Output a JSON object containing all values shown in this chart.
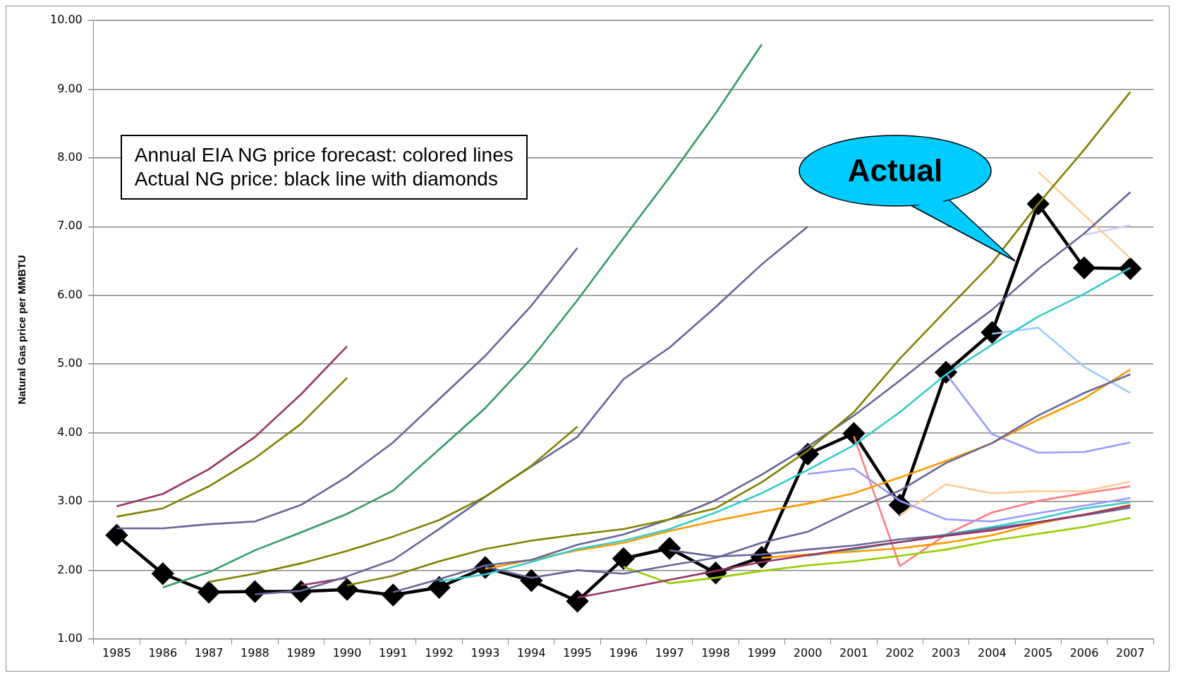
{
  "chart_data": {
    "type": "line",
    "ylabel": "Natural Gas price per MMBTU",
    "categories": [
      "1985",
      "1986",
      "1987",
      "1988",
      "1989",
      "1990",
      "1991",
      "1992",
      "1993",
      "1994",
      "1995",
      "1996",
      "1997",
      "1998",
      "1999",
      "2000",
      "2001",
      "2002",
      "2003",
      "2004",
      "2005",
      "2006",
      "2007"
    ],
    "ylim": [
      1,
      10
    ],
    "yticks": [
      {
        "value": 1,
        "label": "1.00"
      },
      {
        "value": 2,
        "label": "2.00"
      },
      {
        "value": 3,
        "label": "3.00"
      },
      {
        "value": 4,
        "label": "4.00"
      },
      {
        "value": 5,
        "label": "5.00"
      },
      {
        "value": 6,
        "label": "6.00"
      },
      {
        "value": 7,
        "label": "7.00"
      },
      {
        "value": 8,
        "label": "8.00"
      },
      {
        "value": 9,
        "label": "9.00"
      },
      {
        "value": 10,
        "label": "10.00"
      }
    ],
    "grid": "y",
    "legend": false,
    "marker": "none",
    "annotations": [
      "Annual EIA NG price forecast: colored lines",
      "Actual NG price: black line with diamonds",
      {
        "text": "Actual",
        "x": "2004",
        "y": 6.5
      }
    ],
    "series": [
      {
        "color": "#993366",
        "values": [
          2.93,
          3.11,
          3.47,
          3.94,
          4.56,
          5.26,
          null,
          null,
          null,
          null,
          null,
          null,
          null,
          null,
          null,
          null,
          null,
          null,
          null,
          null,
          null,
          null,
          null
        ]
      },
      {
        "color": "#808000",
        "values": [
          2.78,
          2.9,
          3.22,
          3.63,
          4.13,
          4.8,
          null,
          null,
          null,
          null,
          null,
          null,
          null,
          null,
          null,
          null,
          null,
          null,
          null,
          null,
          null,
          null,
          null
        ]
      },
      {
        "color": "#666699",
        "values": [
          2.61,
          2.61,
          2.67,
          2.71,
          2.95,
          3.36,
          3.86,
          4.49,
          5.12,
          5.85,
          6.69,
          null,
          null,
          null,
          null,
          null,
          null,
          null,
          null,
          null,
          null,
          null,
          null
        ]
      },
      {
        "color": "#339966",
        "values": [
          null,
          1.75,
          1.97,
          2.29,
          2.55,
          2.82,
          3.16,
          3.76,
          4.36,
          5.08,
          5.93,
          6.83,
          7.72,
          8.65,
          9.65,
          null,
          null,
          null,
          null,
          null,
          null,
          null,
          null
        ]
      },
      {
        "color": "#808000",
        "values": [
          null,
          null,
          1.83,
          1.95,
          2.1,
          2.28,
          2.49,
          2.73,
          3.07,
          3.52,
          4.09,
          null,
          null,
          null,
          null,
          null,
          null,
          null,
          null,
          null,
          null,
          null,
          null
        ]
      },
      {
        "color": "#666699",
        "values": [
          null,
          null,
          null,
          1.65,
          1.7,
          1.91,
          2.15,
          2.6,
          3.07,
          3.51,
          3.94,
          4.78,
          5.24,
          5.83,
          6.45,
          7.0,
          null,
          null,
          null,
          null,
          null,
          null,
          null
        ]
      },
      {
        "color": "#993366",
        "values": [
          null,
          null,
          null,
          null,
          1.78,
          1.89,
          null,
          null,
          null,
          null,
          null,
          null,
          null,
          null,
          null,
          null,
          null,
          null,
          null,
          null,
          null,
          null,
          null
        ]
      },
      {
        "color": "#808000",
        "values": [
          null,
          null,
          null,
          null,
          null,
          1.78,
          1.92,
          2.13,
          2.31,
          2.43,
          2.52,
          2.6,
          2.74,
          2.9,
          3.28,
          3.74,
          4.3,
          5.08,
          5.78,
          6.47,
          7.33,
          8.12,
          8.96
        ]
      },
      {
        "color": "#666699",
        "values": [
          null,
          null,
          null,
          null,
          null,
          null,
          1.68,
          1.87,
          2.07,
          2.15,
          2.37,
          2.52,
          2.74,
          3.02,
          3.39,
          3.8,
          4.25,
          4.76,
          5.29,
          5.79,
          6.38,
          6.9,
          7.5
        ]
      },
      {
        "color": "#666699",
        "values": [
          null,
          null,
          null,
          null,
          null,
          null,
          null,
          null,
          2.05,
          1.89,
          2.0,
          1.95,
          2.07,
          2.18,
          2.4,
          2.56,
          2.88,
          3.16,
          3.56,
          3.85,
          4.25,
          4.58,
          4.85
        ]
      },
      {
        "color": "#33cccc",
        "values": [
          null,
          null,
          null,
          null,
          null,
          null,
          null,
          1.84,
          1.94,
          2.12,
          2.31,
          2.43,
          2.6,
          2.84,
          3.12,
          3.46,
          3.82,
          4.3,
          4.85,
          5.28,
          5.69,
          6.02,
          6.4
        ]
      },
      {
        "color": "#ff9900",
        "values": [
          null,
          null,
          null,
          null,
          null,
          null,
          null,
          null,
          2.02,
          2.15,
          2.29,
          2.4,
          2.57,
          2.72,
          2.85,
          2.97,
          3.12,
          3.35,
          3.59,
          3.85,
          4.19,
          4.5,
          4.92
        ]
      },
      {
        "color": "#993366",
        "values": [
          null,
          null,
          null,
          null,
          null,
          null,
          null,
          null,
          null,
          null,
          1.6,
          1.73,
          1.86,
          1.99,
          2.12,
          2.22,
          2.32,
          2.41,
          2.5,
          2.58,
          2.7,
          2.81,
          2.94
        ]
      },
      {
        "color": "#99cc00",
        "values": [
          null,
          null,
          null,
          null,
          null,
          null,
          null,
          null,
          null,
          null,
          null,
          2.05,
          1.81,
          1.89,
          1.99,
          2.07,
          2.13,
          2.21,
          2.3,
          2.43,
          2.53,
          2.63,
          2.76
        ]
      },
      {
        "color": "#666699",
        "values": [
          null,
          null,
          null,
          null,
          null,
          null,
          null,
          null,
          null,
          null,
          null,
          null,
          2.29,
          2.2,
          2.23,
          2.3,
          2.36,
          2.45,
          2.51,
          2.61,
          2.7,
          2.8,
          2.91
        ]
      },
      {
        "color": "#ff9900",
        "values": [
          null,
          null,
          null,
          null,
          null,
          null,
          null,
          null,
          null,
          null,
          null,
          null,
          null,
          null,
          2.18,
          2.23,
          2.27,
          2.32,
          2.4,
          2.51,
          2.68,
          2.81,
          2.95
        ]
      },
      {
        "color": "#33cccc",
        "values": [
          null,
          null,
          null,
          null,
          null,
          null,
          null,
          null,
          null,
          null,
          null,
          null,
          null,
          null,
          null,
          2.21,
          2.3,
          2.41,
          2.52,
          2.63,
          2.75,
          2.9,
          2.99
        ]
      },
      {
        "color": "#9999ff",
        "values": [
          null,
          null,
          null,
          null,
          null,
          null,
          null,
          null,
          null,
          null,
          null,
          null,
          null,
          null,
          null,
          3.4,
          3.48,
          3.01,
          2.74,
          2.71,
          2.83,
          2.94,
          3.05
        ]
      },
      {
        "color": "#ff7c80",
        "values": [
          null,
          null,
          null,
          null,
          null,
          null,
          null,
          null,
          null,
          null,
          null,
          null,
          null,
          null,
          null,
          null,
          3.95,
          2.06,
          2.52,
          2.84,
          3.01,
          3.12,
          3.22
        ]
      },
      {
        "color": "#ffcc99",
        "values": [
          null,
          null,
          null,
          null,
          null,
          null,
          null,
          null,
          null,
          null,
          null,
          null,
          null,
          null,
          null,
          null,
          null,
          2.8,
          3.25,
          3.12,
          3.15,
          3.15,
          3.29
        ]
      },
      {
        "color": "#9999ff",
        "values": [
          null,
          null,
          null,
          null,
          null,
          null,
          null,
          null,
          null,
          null,
          null,
          null,
          null,
          null,
          null,
          null,
          null,
          null,
          4.86,
          3.98,
          3.71,
          3.72,
          3.86
        ]
      },
      {
        "color": "#99ccff",
        "values": [
          null,
          null,
          null,
          null,
          null,
          null,
          null,
          null,
          null,
          null,
          null,
          null,
          null,
          null,
          null,
          null,
          null,
          null,
          null,
          5.44,
          5.53,
          4.96,
          4.58
        ]
      },
      {
        "color": "#ffcc99",
        "values": [
          null,
          null,
          null,
          null,
          null,
          null,
          null,
          null,
          null,
          null,
          null,
          null,
          null,
          null,
          null,
          null,
          null,
          null,
          null,
          null,
          7.8,
          7.17,
          6.54
        ]
      },
      {
        "color": "#ccccff",
        "values": [
          null,
          null,
          null,
          null,
          null,
          null,
          null,
          null,
          null,
          null,
          null,
          null,
          null,
          null,
          null,
          null,
          null,
          null,
          null,
          null,
          null,
          6.88,
          7.02
        ]
      },
      {
        "color": "#000000",
        "marker": "diamond",
        "values": [
          2.51,
          1.95,
          1.68,
          1.69,
          1.69,
          1.72,
          1.64,
          1.75,
          2.04,
          1.85,
          1.55,
          2.17,
          2.32,
          1.96,
          2.19,
          3.69,
          3.99,
          2.95,
          4.88,
          5.46,
          7.33,
          6.4,
          6.39
        ]
      }
    ]
  }
}
